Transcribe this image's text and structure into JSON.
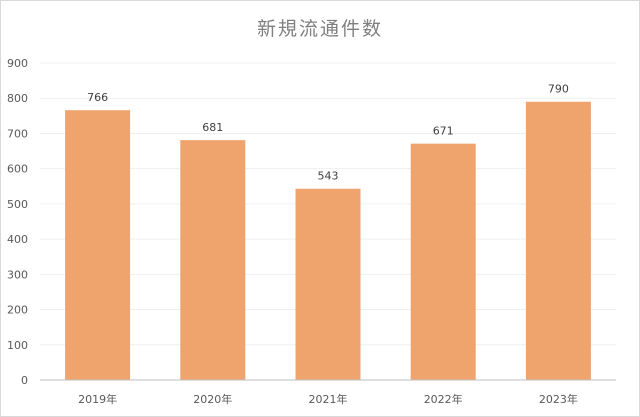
{
  "chart_data": {
    "type": "bar",
    "title": "新規流通件数",
    "categories": [
      "2019年",
      "2020年",
      "2021年",
      "2022年",
      "2023年"
    ],
    "values": [
      766,
      681,
      543,
      671,
      790
    ],
    "data_labels": [
      "766",
      "681",
      "543",
      "671",
      "790"
    ],
    "y_ticks": [
      "0",
      "100",
      "200",
      "300",
      "400",
      "500",
      "600",
      "700",
      "800",
      "900"
    ],
    "ylim": [
      0,
      900
    ],
    "grid": true,
    "legend": "none",
    "bar_color": "#f0a46d",
    "grid_color": "#efefef",
    "axis_color": "#bfbfbf"
  }
}
